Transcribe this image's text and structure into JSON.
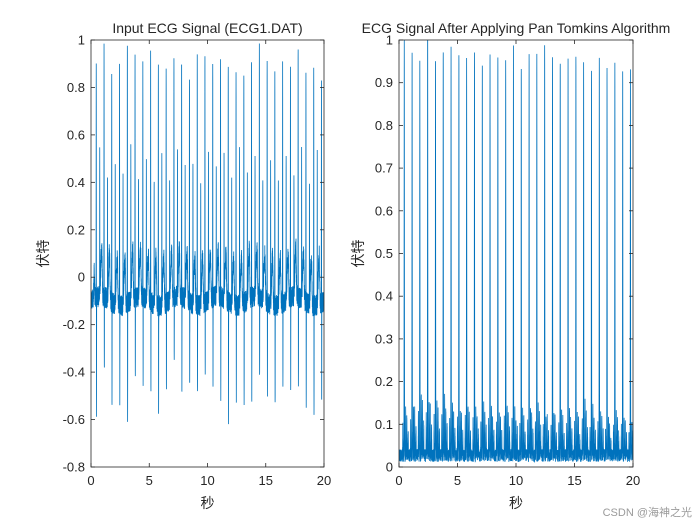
{
  "watermark": "CSDN @海神之光",
  "colors": {
    "line": "#0072BD",
    "axes": "#262626",
    "background": "#ffffff"
  },
  "chart_data": [
    {
      "type": "line",
      "title": "Input ECG Signal (ECG1.DAT)",
      "xlabel": "秒",
      "ylabel": "伏特",
      "xlim": [
        0,
        20
      ],
      "ylim": [
        -0.8,
        1
      ],
      "xticks": [
        0,
        5,
        10,
        15,
        20
      ],
      "yticks": [
        -0.8,
        -0.6,
        -0.4,
        -0.2,
        0,
        0.2,
        0.4,
        0.6,
        0.8,
        1
      ],
      "ytick_labels": [
        "-0.8",
        "-0.6",
        "-0.4",
        "-0.2",
        "0",
        "0.2",
        "0.4",
        "0.6",
        "0.8",
        "1"
      ],
      "grid": false,
      "signal": {
        "baseline": -0.1,
        "beat_times": [
          0.45,
          1.12,
          1.78,
          2.45,
          3.12,
          3.78,
          4.45,
          5.12,
          5.78,
          6.45,
          7.12,
          7.78,
          8.45,
          9.12,
          9.78,
          10.45,
          11.12,
          11.78,
          12.45,
          13.12,
          13.78,
          14.45,
          15.12,
          15.78,
          16.45,
          17.12,
          17.78,
          18.45,
          19.12,
          19.78
        ],
        "peak_values": [
          0.86,
          0.93,
          0.88,
          0.92,
          1.0,
          0.9,
          0.88,
          0.96,
          0.92,
          0.9,
          0.95,
          0.93,
          0.88,
          0.94,
          0.96,
          0.92,
          0.91,
          0.94,
          0.92,
          0.9,
          0.93,
          0.96,
          0.94,
          0.9,
          0.92,
          0.9,
          0.95,
          0.88,
          0.93,
          0.83
        ],
        "trough_values": [
          -0.58,
          -0.45,
          -0.6,
          -0.5,
          -0.62,
          -0.48,
          -0.45,
          -0.52,
          -0.6,
          -0.5,
          -0.42,
          -0.55,
          -0.48,
          -0.5,
          -0.44,
          -0.52,
          -0.58,
          -0.6,
          -0.5,
          -0.56,
          -0.55,
          -0.48,
          -0.52,
          -0.58,
          -0.46,
          -0.53,
          -0.5,
          -0.56,
          -0.6,
          -0.52
        ],
        "secondary_spike": 0.52
      }
    },
    {
      "type": "line",
      "title": "ECG Signal After Applying Pan Tomkins Algorithm",
      "xlabel": "秒",
      "ylabel": "伏特",
      "xlim": [
        0,
        20
      ],
      "ylim": [
        0,
        1
      ],
      "xticks": [
        0,
        5,
        10,
        15,
        20
      ],
      "yticks": [
        0,
        0.1,
        0.2,
        0.3,
        0.4,
        0.5,
        0.6,
        0.7,
        0.8,
        0.9,
        1
      ],
      "ytick_labels": [
        "0",
        "0.1",
        "0.2",
        "0.3",
        "0.4",
        "0.5",
        "0.6",
        "0.7",
        "0.8",
        "0.9",
        "1"
      ],
      "grid": false,
      "signal": {
        "beat_times": [
          0.45,
          1.12,
          1.78,
          2.45,
          3.12,
          3.78,
          4.45,
          5.12,
          5.78,
          6.45,
          7.12,
          7.78,
          8.45,
          9.12,
          9.78,
          10.45,
          11.12,
          11.78,
          12.45,
          13.12,
          13.78,
          14.45,
          15.12,
          15.78,
          16.45,
          17.12,
          17.78,
          18.45,
          19.12,
          19.78
        ],
        "peak_values": [
          0.96,
          0.95,
          0.92,
          1.0,
          0.94,
          0.96,
          0.95,
          0.94,
          0.93,
          0.95,
          0.92,
          0.95,
          0.94,
          0.93,
          0.95,
          0.92,
          0.94,
          0.93,
          0.96,
          0.94,
          0.93,
          0.92,
          0.93,
          0.92,
          0.91,
          0.93,
          0.9,
          0.92,
          0.91,
          0.9
        ],
        "secondary_levels": [
          0.1,
          0.12,
          0.14,
          0.13,
          0.12,
          0.13,
          0.12,
          0.11,
          0.12,
          0.11,
          0.12,
          0.11,
          0.1,
          0.12,
          0.11,
          0.1,
          0.11,
          0.12,
          0.1,
          0.11,
          0.1,
          0.11,
          0.1,
          0.12,
          0.11,
          0.1,
          0.09,
          0.1,
          0.09,
          0.08
        ]
      }
    }
  ]
}
